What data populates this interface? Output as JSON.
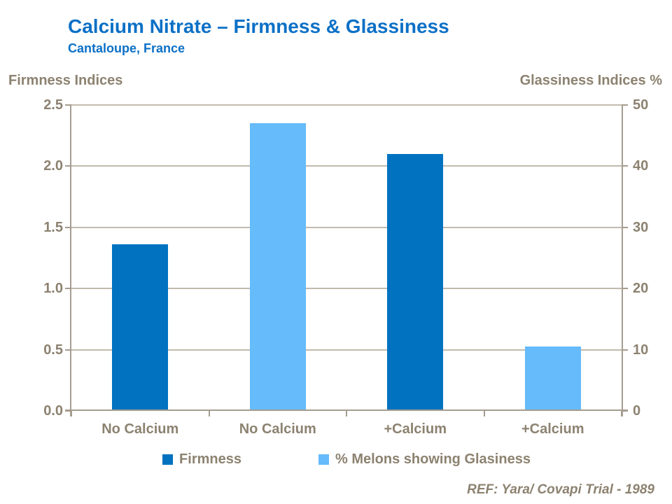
{
  "page": {
    "title": "Calcium Nitrate – Firmness & Glassiness",
    "subtitle": "Cantaloupe, France",
    "footnote": "REF: Yara/ Covapi Trial - 1989"
  },
  "colors": {
    "title": "#0C70C6",
    "text": "#8C8270",
    "axis": "#A69C8F",
    "gridline": "#C2BAAE",
    "firmness": "#0072C0",
    "glassiness": "#66BBFA"
  },
  "chart_data": {
    "type": "bar",
    "title": "Calcium Nitrate – Firmness & Glassiness",
    "subtitle": "Cantaloupe, France",
    "categories": [
      "No Calcium",
      "No Calcium",
      "+Calcium",
      "+Calcium"
    ],
    "bars": [
      {
        "category": "No Calcium",
        "series": "Firmness",
        "value": 1.36,
        "axis": "left"
      },
      {
        "category": "No Calcium",
        "series": "% Melons showing Glasiness",
        "value": 47,
        "axis": "right"
      },
      {
        "category": "+Calcium",
        "series": "Firmness",
        "value": 2.1,
        "axis": "left"
      },
      {
        "category": "+Calcium",
        "series": "% Melons showing Glasiness",
        "value": 10.5,
        "axis": "right"
      }
    ],
    "left_axis": {
      "label": "Firmness Indices",
      "min": 0.0,
      "max": 2.5,
      "ticks": [
        "2.5",
        "2.0",
        "1.5",
        "1.0",
        "0.5",
        "0.0"
      ]
    },
    "right_axis": {
      "label": "Glassiness Indices %",
      "min": 0,
      "max": 50,
      "ticks": [
        "50",
        "40",
        "30",
        "20",
        "10",
        "0"
      ]
    },
    "legend": [
      {
        "label": "Firmness",
        "color": "#0072C0"
      },
      {
        "label": "% Melons showing Glasiness",
        "color": "#66BBFA"
      }
    ],
    "grid": "horizontal",
    "legend_position": "bottom",
    "footnote": "REF: Yara/ Covapi Trial - 1989"
  }
}
